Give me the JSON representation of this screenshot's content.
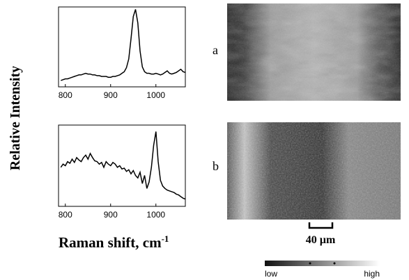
{
  "chart_data": [
    {
      "type": "line",
      "label": "a",
      "x": [
        790,
        795,
        800,
        805,
        810,
        815,
        820,
        825,
        830,
        835,
        840,
        845,
        850,
        855,
        860,
        865,
        870,
        875,
        880,
        885,
        890,
        895,
        900,
        905,
        910,
        915,
        920,
        925,
        930,
        935,
        940,
        945,
        950,
        955,
        960,
        965,
        970,
        975,
        980,
        985,
        990,
        995,
        1000,
        1005,
        1010,
        1015,
        1020,
        1025,
        1030,
        1035,
        1040,
        1045,
        1050,
        1055,
        1060,
        1065
      ],
      "values": [
        0.08,
        0.09,
        0.1,
        0.1,
        0.11,
        0.12,
        0.13,
        0.14,
        0.15,
        0.15,
        0.16,
        0.17,
        0.16,
        0.16,
        0.15,
        0.15,
        0.14,
        0.14,
        0.13,
        0.13,
        0.13,
        0.12,
        0.12,
        0.13,
        0.13,
        0.14,
        0.15,
        0.17,
        0.19,
        0.24,
        0.35,
        0.6,
        0.88,
        0.97,
        0.8,
        0.45,
        0.25,
        0.19,
        0.17,
        0.17,
        0.16,
        0.16,
        0.17,
        0.16,
        0.15,
        0.16,
        0.18,
        0.2,
        0.17,
        0.16,
        0.17,
        0.18,
        0.2,
        0.22,
        0.19,
        0.18
      ],
      "color": "#000000",
      "xlim": [
        785,
        1065
      ],
      "ylim": [
        0,
        1
      ],
      "xticks": [
        800,
        900,
        1000
      ]
    },
    {
      "type": "line",
      "label": "b",
      "x": [
        790,
        795,
        800,
        805,
        810,
        815,
        820,
        825,
        830,
        835,
        840,
        845,
        850,
        855,
        860,
        865,
        870,
        875,
        880,
        885,
        890,
        895,
        900,
        905,
        910,
        915,
        920,
        925,
        930,
        935,
        940,
        945,
        950,
        955,
        960,
        965,
        970,
        975,
        980,
        985,
        990,
        995,
        1000,
        1005,
        1010,
        1015,
        1020,
        1025,
        1030,
        1035,
        1040,
        1045,
        1050,
        1055,
        1060,
        1065
      ],
      "values": [
        0.48,
        0.52,
        0.5,
        0.55,
        0.53,
        0.58,
        0.54,
        0.6,
        0.57,
        0.55,
        0.6,
        0.63,
        0.58,
        0.65,
        0.6,
        0.56,
        0.55,
        0.52,
        0.54,
        0.48,
        0.55,
        0.52,
        0.5,
        0.54,
        0.52,
        0.48,
        0.5,
        0.46,
        0.47,
        0.43,
        0.45,
        0.4,
        0.44,
        0.38,
        0.35,
        0.42,
        0.28,
        0.38,
        0.22,
        0.3,
        0.48,
        0.75,
        0.92,
        0.55,
        0.32,
        0.25,
        0.22,
        0.2,
        0.19,
        0.18,
        0.17,
        0.15,
        0.14,
        0.12,
        0.1,
        0.09
      ],
      "color": "#000000",
      "xlim": [
        785,
        1065
      ],
      "ylim": [
        0,
        1
      ],
      "xticks": [
        800,
        900,
        1000
      ]
    }
  ],
  "ylabel": "Relative Intensity",
  "xlabel": "Raman shift, cm",
  "xlabel_superscript": "-1",
  "scale_bar": "40 µm",
  "colorbar": {
    "low": "low",
    "high": "high"
  }
}
